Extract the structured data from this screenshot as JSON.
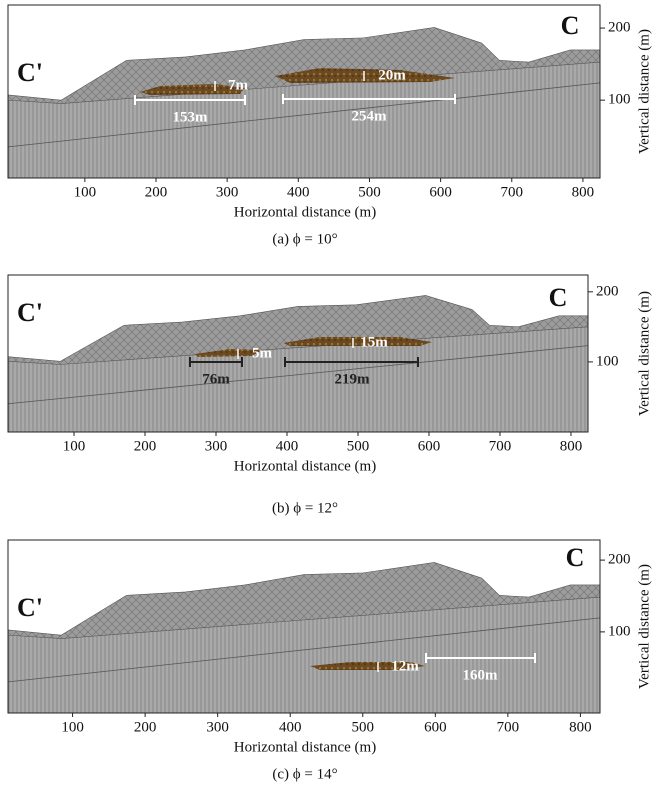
{
  "chart_data": [
    {
      "type": "terrain",
      "labels": [
        "C'",
        "C"
      ],
      "xlabel": "Horizontal distance (m)",
      "ylabel": "Vertical distance (m)",
      "caption": "(a) ϕ = 10°",
      "xlim": [
        -8,
        824
      ],
      "xticks": [
        100,
        200,
        300,
        400,
        500,
        600,
        700,
        800
      ],
      "ylim": [
        -8,
        232
      ],
      "yticks": [
        100,
        200
      ],
      "annotations": [
        "7m",
        "20m",
        "153m",
        "254m"
      ]
    },
    {
      "type": "terrain",
      "labels": [
        "C'",
        "C"
      ],
      "xlabel": "Horizontal distance (m)",
      "ylabel": "Vertical distance (m)",
      "caption": "(b) ϕ = 12°",
      "xlim": [
        7,
        824
      ],
      "xticks": [
        100,
        200,
        300,
        400,
        500,
        600,
        700,
        800
      ],
      "ylim": [
        0,
        224
      ],
      "yticks": [
        100,
        200
      ],
      "annotations": [
        "5m",
        "15m",
        "76m",
        "219m"
      ]
    },
    {
      "type": "terrain",
      "labels": [
        "C'",
        "C"
      ],
      "xlabel": "Horizontal distance (m)",
      "ylabel": "Vertical distance (m)",
      "caption": "(c) ϕ = 14°",
      "xlim": [
        11,
        827
      ],
      "xticks": [
        100,
        200,
        300,
        400,
        500,
        600,
        700,
        800
      ],
      "ylim": [
        -13,
        228
      ],
      "yticks": [
        100,
        200
      ],
      "annotations": [
        "12m",
        "160m"
      ]
    }
  ]
}
